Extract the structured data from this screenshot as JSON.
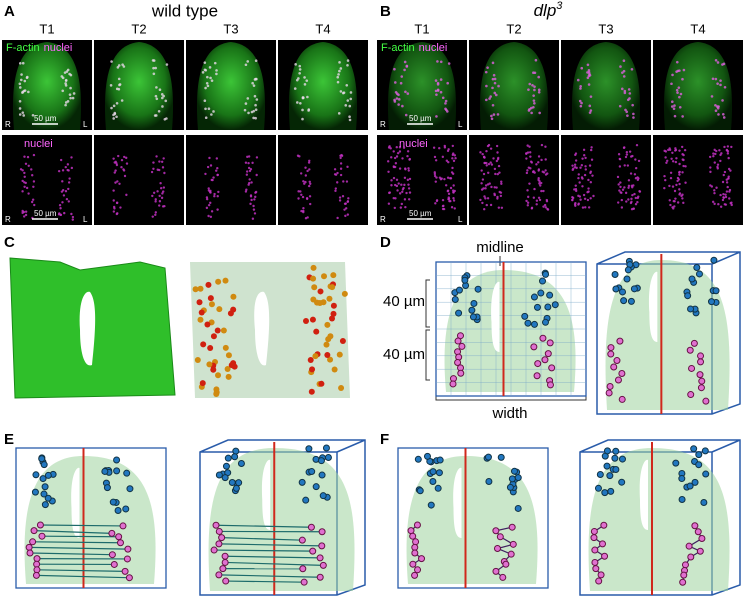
{
  "panels": [
    {
      "label": "A",
      "title": "wild type",
      "timepoints": [
        "T1",
        "T2",
        "T3",
        "T4"
      ],
      "overlay_labels": [
        "F-actin",
        "nuclei"
      ],
      "nuclei_label": "nuclei",
      "scale_bar": "50 µm",
      "sides": [
        "R",
        "L"
      ]
    },
    {
      "label": "B",
      "title": "dlp",
      "title_superscript": "3",
      "timepoints": [
        "T1",
        "T2",
        "T3",
        "T4"
      ],
      "overlay_labels": [
        "F-actin",
        "nuclei"
      ],
      "nuclei_label": "nuclei",
      "scale_bar": "50 µm",
      "sides": [
        "R",
        "L"
      ]
    },
    {
      "label": "C"
    },
    {
      "label": "D",
      "midline": "midline",
      "height_labels": [
        "40 µm",
        "40 µm"
      ],
      "width_label": "width"
    },
    {
      "label": "E"
    },
    {
      "label": "F"
    }
  ]
}
